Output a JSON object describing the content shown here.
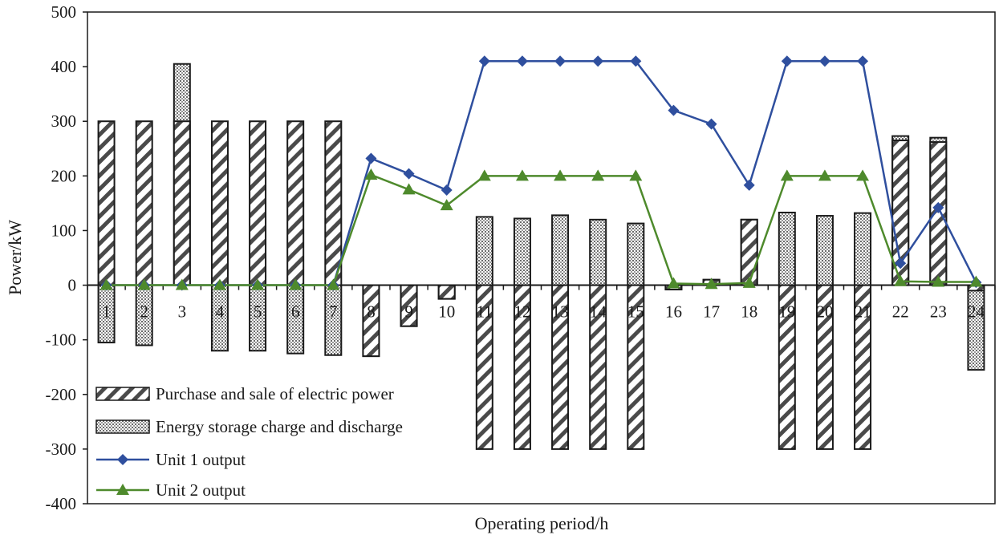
{
  "chart_data": {
    "type": "bar+line",
    "title": "",
    "xlabel": "Operating period/h",
    "ylabel": "Power/kW",
    "ylim": [
      -400,
      500
    ],
    "yticks": [
      -400,
      -300,
      -200,
      -100,
      0,
      100,
      200,
      300,
      400,
      500
    ],
    "ytick_labels": [
      "-400",
      "-300",
      "-200",
      "-100",
      "0",
      "100",
      "200",
      "300",
      "400",
      "500"
    ],
    "grid": false,
    "legend_position": "bottom-left",
    "categories": [
      "1",
      "2",
      "3",
      "4",
      "5",
      "6",
      "7",
      "8",
      "9",
      "10",
      "11",
      "12",
      "13",
      "14",
      "15",
      "16",
      "17",
      "18",
      "19",
      "20",
      "21",
      "22",
      "23",
      "24"
    ],
    "bar_series": [
      {
        "name": "Purchase and sale of electric power",
        "pattern": "diagonal-stripes",
        "values": [
          300,
          300,
          300,
          300,
          300,
          300,
          300,
          -130,
          -75,
          -25,
          -300,
          -300,
          -300,
          -300,
          -300,
          -8,
          10,
          120,
          -300,
          -300,
          -300,
          265,
          262,
          -10
        ]
      },
      {
        "name": "Energy storage charge and discharge",
        "pattern": "crosshatch-dots",
        "values": [
          -105,
          -110,
          105,
          -120,
          -120,
          -125,
          -128,
          0,
          0,
          0,
          125,
          122,
          128,
          120,
          113,
          0,
          0,
          0,
          133,
          127,
          132,
          8,
          8,
          -145
        ]
      }
    ],
    "line_series": [
      {
        "name": "Unit 1 output",
        "color": "#2f4f9e",
        "marker": "diamond",
        "values": [
          0,
          0,
          0,
          0,
          0,
          0,
          0,
          232,
          204,
          174,
          410,
          410,
          410,
          410,
          410,
          320,
          295,
          183,
          410,
          410,
          410,
          40,
          142,
          5
        ]
      },
      {
        "name": "Unit 2 output",
        "color": "#4e8a2c",
        "marker": "triangle",
        "values": [
          0,
          0,
          0,
          0,
          0,
          0,
          0,
          202,
          175,
          146,
          200,
          200,
          200,
          200,
          200,
          3,
          2,
          4,
          200,
          200,
          200,
          7,
          6,
          6
        ]
      }
    ]
  }
}
